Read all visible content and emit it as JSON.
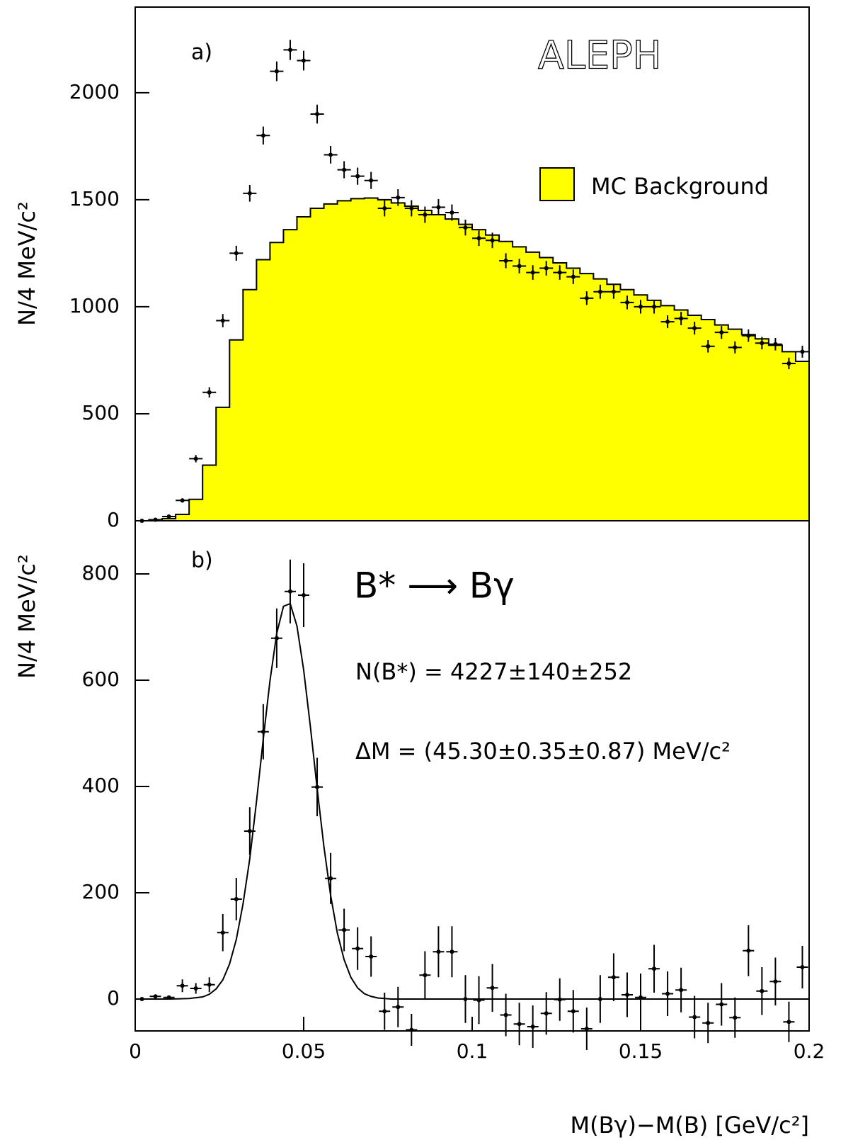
{
  "chart_data": [
    {
      "type": "histogram",
      "panel_label": "a)",
      "title": "ALEPH",
      "ylabel": "N/4 MeV/c²",
      "xlim": [
        0,
        0.2
      ],
      "ylim": [
        0,
        2400
      ],
      "yticks": [
        0,
        500,
        1000,
        1500,
        2000
      ],
      "legend": "upper right",
      "bins": [
        0,
        0.004,
        0.008,
        0.012,
        0.016,
        0.02,
        0.024,
        0.028,
        0.032,
        0.036,
        0.04,
        0.044,
        0.048,
        0.052,
        0.056,
        0.06,
        0.064,
        0.068,
        0.072,
        0.076,
        0.08,
        0.084,
        0.088,
        0.092,
        0.096,
        0.1,
        0.104,
        0.108,
        0.112,
        0.116,
        0.12,
        0.124,
        0.128,
        0.132,
        0.136,
        0.14,
        0.144,
        0.148,
        0.152,
        0.156,
        0.16,
        0.164,
        0.168,
        0.172,
        0.176,
        0.18,
        0.184,
        0.188,
        0.192,
        0.196,
        0.2
      ],
      "series": [
        {
          "name": "MC Background",
          "color": "#ffff00",
          "values": [
            0,
            3,
            10,
            30,
            100,
            260,
            530,
            845,
            1080,
            1220,
            1300,
            1360,
            1420,
            1460,
            1480,
            1495,
            1505,
            1508,
            1500,
            1485,
            1470,
            1450,
            1430,
            1410,
            1385,
            1360,
            1335,
            1305,
            1280,
            1255,
            1230,
            1205,
            1180,
            1155,
            1130,
            1105,
            1080,
            1055,
            1030,
            1005,
            985,
            960,
            940,
            915,
            895,
            870,
            850,
            820,
            790,
            745
          ]
        }
      ],
      "points": {
        "values": [
          0,
          5,
          20,
          95,
          290,
          600,
          935,
          1250,
          1530,
          1800,
          2100,
          2200,
          2150,
          1900,
          1710,
          1640,
          1610,
          1590,
          1460,
          1510,
          1460,
          1430,
          1465,
          1440,
          1370,
          1320,
          1310,
          1215,
          1190,
          1160,
          1180,
          1160,
          1140,
          1040,
          1070,
          1070,
          1020,
          1000,
          1000,
          930,
          945,
          900,
          815,
          880,
          810,
          865,
          830,
          825,
          735,
          790
        ],
        "errors": [
          0,
          2,
          4,
          10,
          17,
          24,
          31,
          35,
          39,
          42,
          46,
          47,
          46,
          44,
          41,
          40,
          40,
          40,
          38,
          39,
          38,
          38,
          38,
          38,
          37,
          36,
          36,
          35,
          34,
          34,
          34,
          34,
          34,
          32,
          33,
          33,
          32,
          32,
          32,
          30,
          31,
          30,
          29,
          30,
          28,
          29,
          29,
          29,
          27,
          28
        ]
      }
    },
    {
      "type": "errorbar",
      "panel_label": "b)",
      "ylabel": "N/4 MeV/c²",
      "xlabel": "M(Bγ)−M(B) [GeV/c²]",
      "annotations": [
        "B* ⟶ Bγ",
        "N(B*) = 4227±140±252",
        "ΔM = (45.30±0.35±0.87) MeV/c²"
      ],
      "xlim": [
        0,
        0.2
      ],
      "xticks": [
        0,
        0.05,
        0.1,
        0.15,
        0.2
      ],
      "ylim": [
        -60,
        900
      ],
      "yticks": [
        0,
        200,
        400,
        600,
        800
      ],
      "x": [
        0.002,
        0.006,
        0.01,
        0.014,
        0.018,
        0.022,
        0.026,
        0.03,
        0.034,
        0.038,
        0.042,
        0.046,
        0.05,
        0.054,
        0.058,
        0.062,
        0.066,
        0.07,
        0.074,
        0.078,
        0.082,
        0.086,
        0.09,
        0.094,
        0.098,
        0.102,
        0.106,
        0.11,
        0.114,
        0.118,
        0.122,
        0.126,
        0.13,
        0.134,
        0.138,
        0.142,
        0.146,
        0.15,
        0.154,
        0.158,
        0.162,
        0.166,
        0.17,
        0.174,
        0.178,
        0.182,
        0.186,
        0.19,
        0.194,
        0.198
      ],
      "values": [
        0,
        5,
        3,
        25,
        20,
        27,
        125,
        188,
        316,
        503,
        679,
        767,
        760,
        399,
        227,
        130,
        95,
        80,
        -23,
        -15,
        -58,
        45,
        89,
        89,
        0,
        -2,
        21,
        -30,
        -47,
        -52,
        -27,
        -1,
        -23,
        -56,
        0,
        41,
        8,
        3,
        57,
        10,
        17,
        -34,
        -45,
        -10,
        -35,
        91,
        15,
        33,
        -43,
        60
      ],
      "errors": [
        0,
        3,
        3,
        12,
        10,
        14,
        35,
        40,
        45,
        52,
        56,
        60,
        60,
        55,
        48,
        40,
        40,
        38,
        35,
        38,
        30,
        45,
        48,
        48,
        45,
        45,
        45,
        40,
        40,
        40,
        40,
        40,
        40,
        40,
        45,
        45,
        42,
        45,
        45,
        42,
        42,
        40,
        38,
        40,
        38,
        48,
        45,
        45,
        38,
        40
      ],
      "fit": {
        "x": [
          0,
          0.01,
          0.016,
          0.02,
          0.022,
          0.024,
          0.026,
          0.028,
          0.03,
          0.032,
          0.034,
          0.036,
          0.038,
          0.04,
          0.042,
          0.044,
          0.046,
          0.048,
          0.05,
          0.052,
          0.054,
          0.056,
          0.058,
          0.06,
          0.062,
          0.064,
          0.066,
          0.068,
          0.07,
          0.072,
          0.074,
          0.076,
          0.2
        ],
        "values": [
          0,
          0,
          1,
          4,
          9,
          19,
          36,
          66,
          112,
          179,
          264,
          372,
          489,
          599,
          688,
          739,
          744,
          702,
          619,
          512,
          396,
          287,
          195,
          124,
          74,
          41,
          21,
          10,
          5,
          2,
          1,
          0,
          0
        ]
      }
    }
  ]
}
